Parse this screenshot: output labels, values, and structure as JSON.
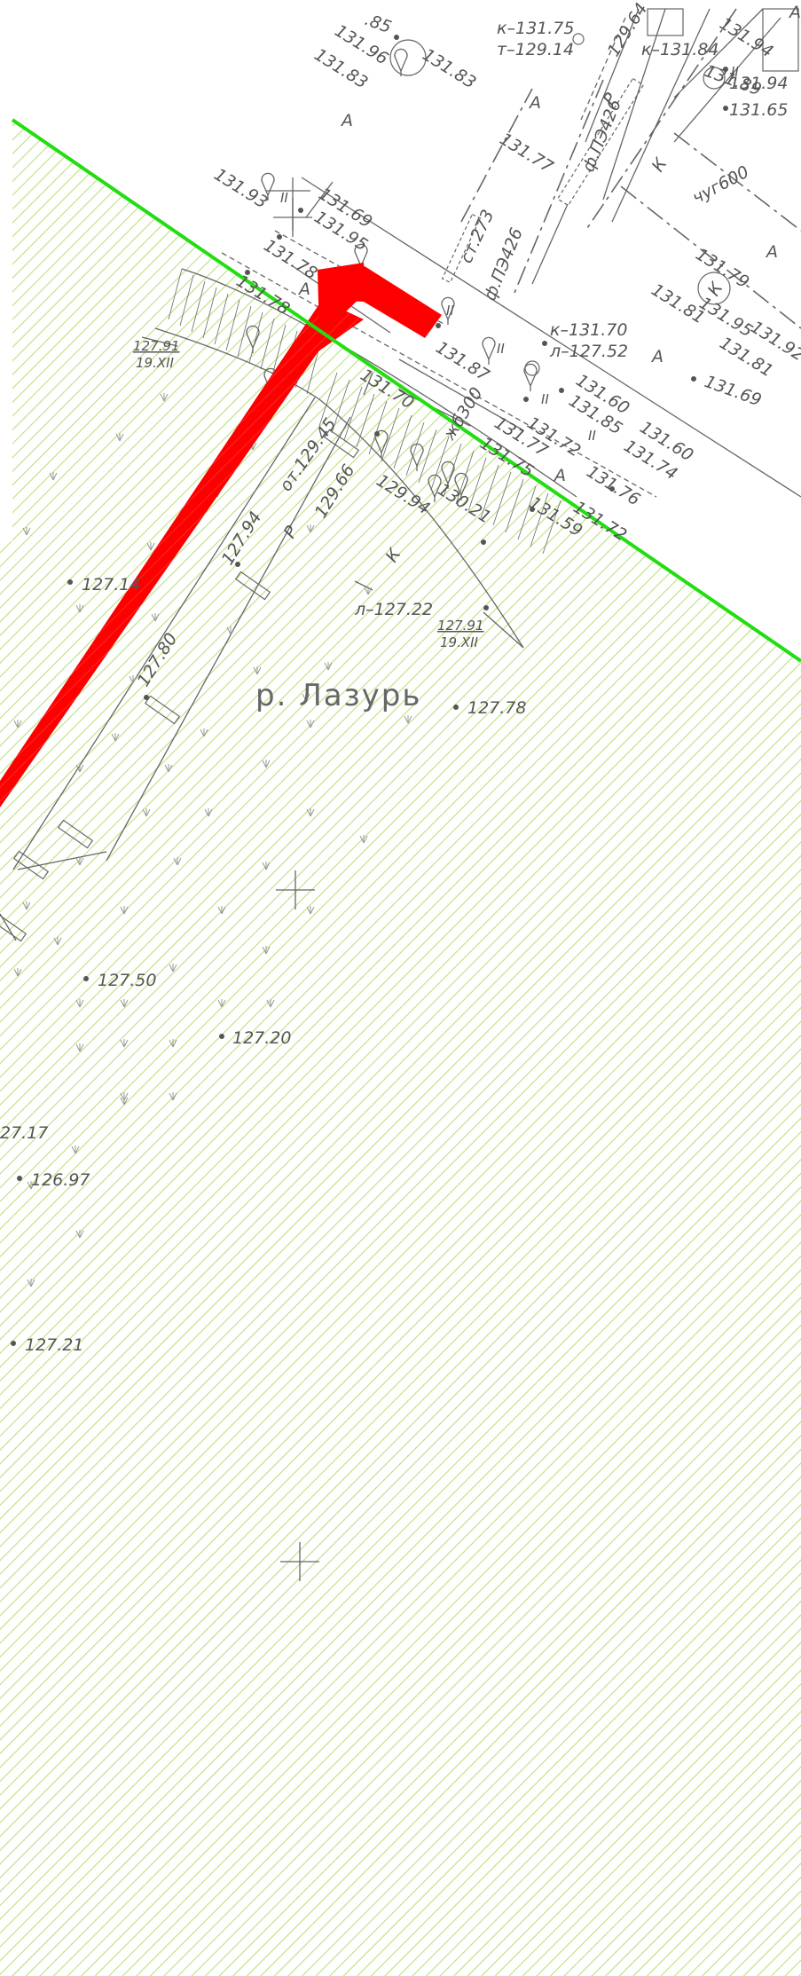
{
  "colors": {
    "hatch": "#b8e27a",
    "boundary": "#22dd11",
    "route": "#ff0000",
    "linework": "#666666",
    "background": "#ffffff"
  },
  "river_name": "р. Лазурь",
  "elevations": {
    "e1": ".85",
    "e2": "131.96",
    "e3": "131.83",
    "e4": "131.83",
    "e5": "к–131.75",
    "e6": "т–129.14",
    "e7": "129.64",
    "e8": "к–131.84",
    "e9": "131.94",
    "e10": "131.89",
    "e11": "131.94",
    "e12": "131.65",
    "e13": "131.77",
    "e14": "131.93",
    "e15": "131.69",
    "e16": "131.95",
    "e17": "131.78",
    "e18": "131.79",
    "e19": "131.81",
    "e20": "131.95",
    "e21": "131.92",
    "e22": "131.81",
    "e23": "131.69",
    "e24": "131.87",
    "e25": "к–131.70",
    "e26": "л–127.52",
    "e27": "131.60",
    "e28": "131.85",
    "e29": "131.60",
    "e30": "131.74",
    "e31": "131.77",
    "e32": "131.72",
    "e33": "131.75",
    "e34": "131.76",
    "e35": "131.59",
    "e36": "131.72",
    "e37": "131.70",
    "e38": "129.94",
    "e39": "130.21",
    "e40": "129.66",
    "e41": "127.94",
    "e42": "127.14",
    "e43": "л–127.22",
    "e44": "127.78",
    "e45": "127.80",
    "e46": "127.50",
    "e47": "127.20",
    "e48": "27.17",
    "e49": "126.97",
    "e50": "127.21",
    "e51": "131.78"
  },
  "annotations": {
    "ot": "от.129.45",
    "st": "ст.273",
    "pipe1": "ф.ПЭ426",
    "pipe2": "ф.ПЭ426",
    "chug": "чуг600",
    "zhb": "жб300",
    "waterline1_value": "127.91",
    "waterline1_date": "19.XII",
    "waterline2_value": "127.91",
    "waterline2_date": "19.XII",
    "k1": "К",
    "k2": "К",
    "k3": "К",
    "r1": "Р",
    "r2": "Р",
    "a1": "А",
    "a2": "А",
    "a3": "А",
    "a4": "А",
    "a5": "А",
    "a6": "А",
    "a7": "А",
    "v1": "II",
    "v2": "II",
    "v3": "II",
    "v4": "II",
    "v5": "II",
    "v6": "II"
  },
  "icons": [
    "tree-symbol",
    "survey-cross",
    "meadow-grass-symbol",
    "hydrant-symbol"
  ]
}
